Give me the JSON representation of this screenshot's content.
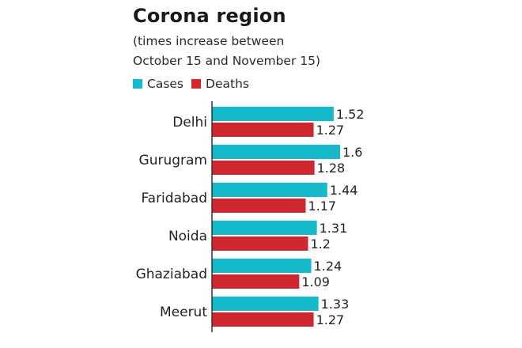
{
  "chart_data": {
    "type": "bar",
    "orientation": "horizontal",
    "title": "Corona region",
    "subtitle_lines": [
      "(times increase between",
      "October 15 and November 15)"
    ],
    "categories": [
      "Delhi",
      "Gurugram",
      "Faridabad",
      "Noida",
      "Ghaziabad",
      "Meerut"
    ],
    "series": [
      {
        "name": "Cases",
        "color": "#16b8cc",
        "values": [
          1.52,
          1.6,
          1.44,
          1.31,
          1.24,
          1.33
        ]
      },
      {
        "name": "Deaths",
        "color": "#d0262e",
        "values": [
          1.27,
          1.28,
          1.17,
          1.2,
          1.09,
          1.27
        ]
      }
    ],
    "value_labels": {
      "Cases": [
        "1.52",
        "1.6",
        "1.44",
        "1.31",
        "1.24",
        "1.33"
      ],
      "Deaths": [
        "1.27",
        "1.28",
        "1.17",
        "1.2",
        "1.09",
        "1.27"
      ]
    },
    "xlim": [
      0,
      1.6
    ],
    "xlabel": "",
    "ylabel": "",
    "grid": false,
    "legend_position": "top-left"
  }
}
